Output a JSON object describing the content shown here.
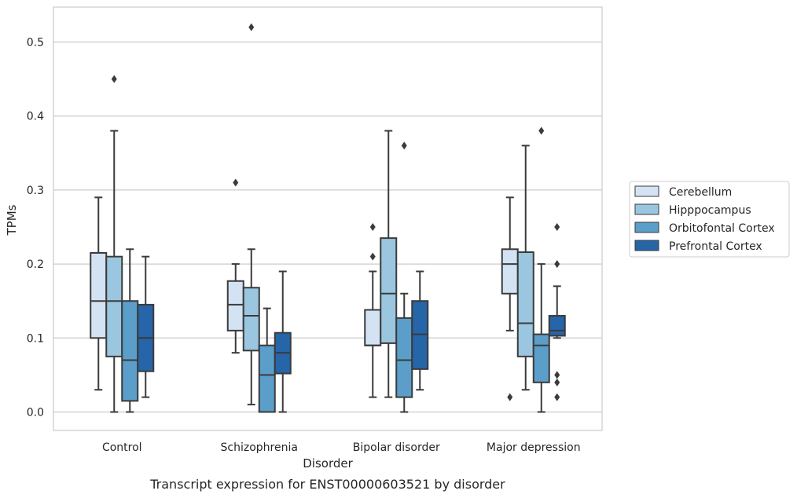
{
  "chart_data": {
    "type": "boxplot",
    "caption": "Transcript expression for ENST00000603521 by disorder",
    "xlabel": "Disorder",
    "ylabel": "TPMs",
    "ylim": [
      -0.025,
      0.55
    ],
    "yticks": [
      0.0,
      0.1,
      0.2,
      0.3,
      0.4,
      0.5
    ],
    "ytick_labels": [
      "0.0",
      "0.1",
      "0.2",
      "0.3",
      "0.4",
      "0.5"
    ],
    "grid": "horizontal",
    "legend_position": "right",
    "categories": [
      "Control",
      "Schizophrenia",
      "Bipolar disorder",
      "Major depression"
    ],
    "series": [
      {
        "name": "Cerebellum",
        "color": "#d4e3f3",
        "boxes": [
          {
            "whislo": 0.03,
            "q1": 0.1,
            "med": 0.15,
            "q3": 0.215,
            "whishi": 0.29,
            "fliers": []
          },
          {
            "whislo": 0.08,
            "q1": 0.11,
            "med": 0.145,
            "q3": 0.177,
            "whishi": 0.2,
            "fliers": [
              0.31
            ]
          },
          {
            "whislo": 0.02,
            "q1": 0.09,
            "med": 0.09,
            "q3": 0.138,
            "whishi": 0.19,
            "fliers": [
              0.21,
              0.25
            ]
          },
          {
            "whislo": 0.11,
            "q1": 0.16,
            "med": 0.2,
            "q3": 0.22,
            "whishi": 0.29,
            "fliers": [
              0.02
            ]
          }
        ]
      },
      {
        "name": "Hipppocampus",
        "color": "#9ac6df",
        "boxes": [
          {
            "whislo": 0.0,
            "q1": 0.075,
            "med": 0.15,
            "q3": 0.21,
            "whishi": 0.38,
            "fliers": [
              0.45
            ]
          },
          {
            "whislo": 0.01,
            "q1": 0.083,
            "med": 0.13,
            "q3": 0.168,
            "whishi": 0.22,
            "fliers": [
              0.52
            ]
          },
          {
            "whislo": 0.02,
            "q1": 0.093,
            "med": 0.16,
            "q3": 0.235,
            "whishi": 0.38,
            "fliers": []
          },
          {
            "whislo": 0.03,
            "q1": 0.075,
            "med": 0.12,
            "q3": 0.216,
            "whishi": 0.36,
            "fliers": []
          }
        ]
      },
      {
        "name": "Orbitofontal Cortex",
        "color": "#5b9ec9",
        "boxes": [
          {
            "whislo": 0.0,
            "q1": 0.015,
            "med": 0.07,
            "q3": 0.15,
            "whishi": 0.22,
            "fliers": []
          },
          {
            "whislo": 0.0,
            "q1": 0.0,
            "med": 0.05,
            "q3": 0.09,
            "whishi": 0.14,
            "fliers": []
          },
          {
            "whislo": 0.0,
            "q1": 0.02,
            "med": 0.07,
            "q3": 0.127,
            "whishi": 0.16,
            "fliers": [
              0.36
            ]
          },
          {
            "whislo": 0.0,
            "q1": 0.04,
            "med": 0.09,
            "q3": 0.105,
            "whishi": 0.2,
            "fliers": [
              0.38
            ]
          }
        ]
      },
      {
        "name": "Prefrontal Cortex",
        "color": "#2565a8",
        "boxes": [
          {
            "whislo": 0.02,
            "q1": 0.055,
            "med": 0.1,
            "q3": 0.145,
            "whishi": 0.21,
            "fliers": []
          },
          {
            "whislo": 0.0,
            "q1": 0.052,
            "med": 0.08,
            "q3": 0.107,
            "whishi": 0.19,
            "fliers": []
          },
          {
            "whislo": 0.03,
            "q1": 0.058,
            "med": 0.105,
            "q3": 0.15,
            "whishi": 0.19,
            "fliers": []
          },
          {
            "whislo": 0.1,
            "q1": 0.103,
            "med": 0.11,
            "q3": 0.13,
            "whishi": 0.17,
            "fliers": [
              0.02,
              0.04,
              0.05,
              0.2,
              0.25
            ]
          }
        ]
      }
    ]
  }
}
